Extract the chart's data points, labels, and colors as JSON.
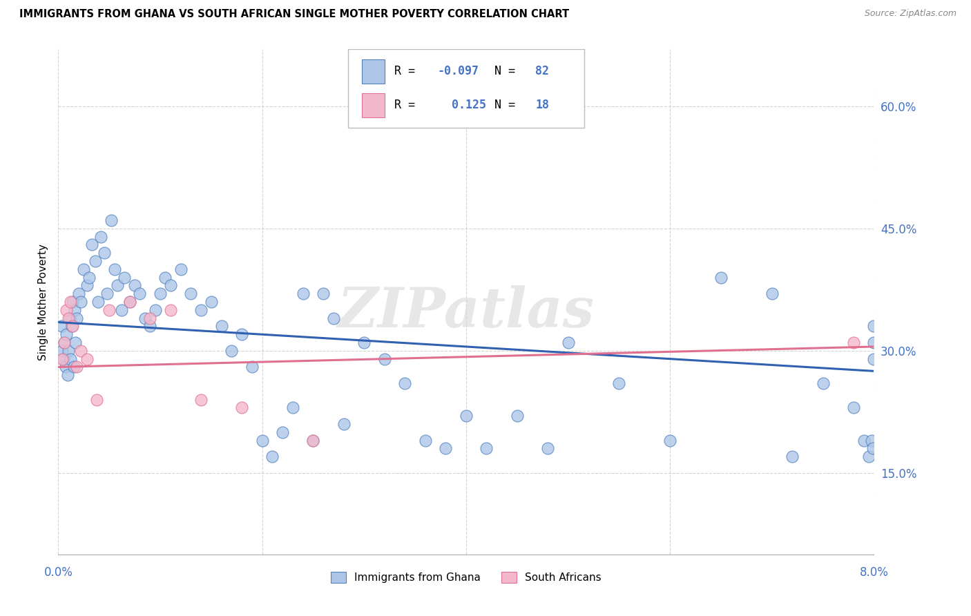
{
  "title": "IMMIGRANTS FROM GHANA VS SOUTH AFRICAN SINGLE MOTHER POVERTY CORRELATION CHART",
  "source": "Source: ZipAtlas.com",
  "ylabel": "Single Mother Poverty",
  "ytick_vals": [
    15,
    30,
    45,
    60
  ],
  "xlim": [
    0.0,
    8.0
  ],
  "ylim": [
    5.0,
    67.0
  ],
  "legend_R1": "-0.097",
  "legend_N1": "82",
  "legend_R2": "0.125",
  "legend_N2": "18",
  "legend_label1": "Immigrants from Ghana",
  "legend_label2": "South Africans",
  "blue_fill": "#adc6e8",
  "blue_edge": "#5080c0",
  "pink_fill": "#f4b8cc",
  "pink_edge": "#e07090",
  "line_blue_color": "#3060b0",
  "line_pink_color": "#e07090",
  "ytick_color": "#4472c4",
  "watermark": "ZIPatlas",
  "blue_line_y0": 33.5,
  "blue_line_y1": 27.5,
  "pink_line_y0": 28.0,
  "pink_line_y1": 30.5,
  "ghana_x": [
    0.03,
    0.04,
    0.05,
    0.06,
    0.07,
    0.08,
    0.09,
    0.1,
    0.11,
    0.12,
    0.13,
    0.14,
    0.15,
    0.16,
    0.17,
    0.18,
    0.2,
    0.22,
    0.25,
    0.28,
    0.3,
    0.33,
    0.36,
    0.39,
    0.42,
    0.45,
    0.48,
    0.52,
    0.55,
    0.58,
    0.62,
    0.65,
    0.7,
    0.75,
    0.8,
    0.85,
    0.9,
    0.95,
    1.0,
    1.05,
    1.1,
    1.2,
    1.3,
    1.4,
    1.5,
    1.6,
    1.7,
    1.8,
    1.9,
    2.0,
    2.1,
    2.2,
    2.3,
    2.4,
    2.5,
    2.6,
    2.7,
    2.8,
    3.0,
    3.2,
    3.4,
    3.6,
    3.8,
    4.0,
    4.2,
    4.5,
    4.8,
    5.0,
    5.5,
    6.0,
    6.5,
    7.0,
    7.2,
    7.5,
    7.8,
    7.9,
    7.95,
    7.98,
    7.99,
    8.0,
    8.0,
    8.0
  ],
  "ghana_y": [
    33.0,
    30.0,
    29.0,
    31.0,
    28.0,
    32.0,
    27.0,
    30.0,
    34.0,
    29.0,
    33.0,
    36.0,
    28.0,
    35.0,
    31.0,
    34.0,
    37.0,
    36.0,
    40.0,
    38.0,
    39.0,
    43.0,
    41.0,
    36.0,
    44.0,
    42.0,
    37.0,
    46.0,
    40.0,
    38.0,
    35.0,
    39.0,
    36.0,
    38.0,
    37.0,
    34.0,
    33.0,
    35.0,
    37.0,
    39.0,
    38.0,
    40.0,
    37.0,
    35.0,
    36.0,
    33.0,
    30.0,
    32.0,
    28.0,
    19.0,
    17.0,
    20.0,
    23.0,
    37.0,
    19.0,
    37.0,
    34.0,
    21.0,
    31.0,
    29.0,
    26.0,
    19.0,
    18.0,
    22.0,
    18.0,
    22.0,
    18.0,
    31.0,
    26.0,
    19.0,
    39.0,
    37.0,
    17.0,
    26.0,
    23.0,
    19.0,
    17.0,
    19.0,
    18.0,
    29.0,
    31.0,
    33.0
  ],
  "sa_x": [
    0.04,
    0.06,
    0.08,
    0.1,
    0.12,
    0.14,
    0.18,
    0.22,
    0.28,
    0.38,
    0.5,
    0.7,
    0.9,
    1.1,
    1.4,
    1.8,
    2.5,
    7.8
  ],
  "sa_y": [
    29.0,
    31.0,
    35.0,
    34.0,
    36.0,
    33.0,
    28.0,
    30.0,
    29.0,
    24.0,
    35.0,
    36.0,
    34.0,
    35.0,
    24.0,
    23.0,
    19.0,
    31.0
  ]
}
